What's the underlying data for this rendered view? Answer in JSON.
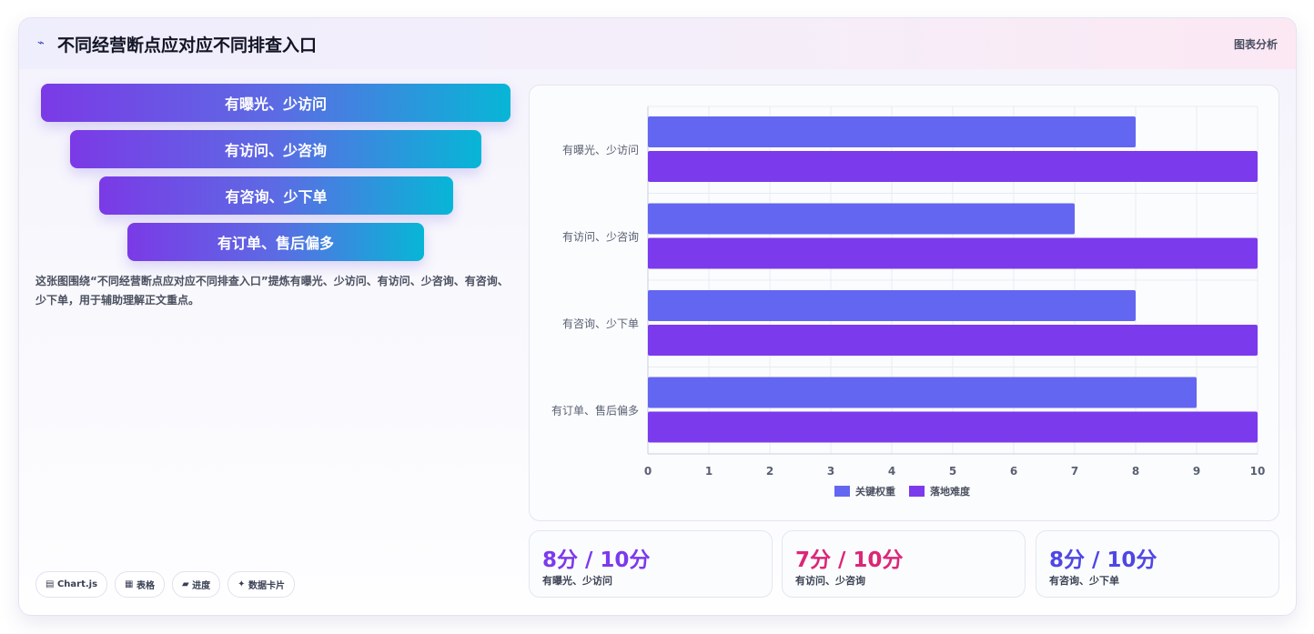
{
  "header": {
    "title": "不同经营断点应对应不同排查入口",
    "tag": "图表分析",
    "icon": "wave-icon"
  },
  "funnel": {
    "items": [
      "有曝光、少访问",
      "有访问、少咨询",
      "有咨询、少下单",
      "有订单、售后偏多"
    ]
  },
  "description": "这张图围绕“不同经营断点应对应不同排查入口”提炼有曝光、少访问、有访问、少咨询、有咨询、少下单，用于辅助理解正文重点。",
  "chips": [
    {
      "icon": "chart-icon",
      "glyph": "▤",
      "label": "Chart.js"
    },
    {
      "icon": "table-icon",
      "glyph": "▦",
      "label": "表格"
    },
    {
      "icon": "progress-icon",
      "glyph": "▰",
      "label": "进度"
    },
    {
      "icon": "sparkle-icon",
      "glyph": "✦",
      "label": "数据卡片"
    }
  ],
  "chart_data": {
    "type": "bar",
    "orientation": "horizontal",
    "categories": [
      "有曝光、少访问",
      "有访问、少咨询",
      "有咨询、少下单",
      "有订单、售后偏多"
    ],
    "series": [
      {
        "name": "关键权重",
        "color": "#6366f1",
        "values": [
          8,
          7,
          8,
          9
        ]
      },
      {
        "name": "落地难度",
        "color": "#7c3aed",
        "values": [
          10,
          10,
          10,
          10
        ]
      }
    ],
    "xlim": [
      0,
      10
    ],
    "xticks": [
      "0",
      "1",
      "2",
      "3",
      "4",
      "5",
      "6",
      "7",
      "8",
      "9",
      "10"
    ],
    "grid": true,
    "legend": "bottom"
  },
  "stats": [
    {
      "value": "8分 / 10分",
      "label": "有曝光、少访问",
      "color": "#7c3aed"
    },
    {
      "value": "7分 / 10分",
      "label": "有访问、少咨询",
      "color": "#db2777"
    },
    {
      "value": "8分 / 10分",
      "label": "有咨询、少下单",
      "color": "#4f46e5"
    }
  ]
}
